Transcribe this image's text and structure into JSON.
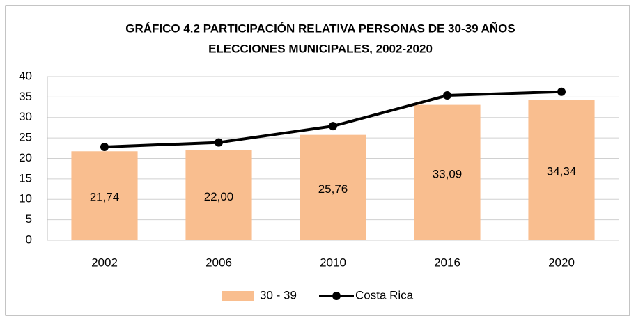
{
  "chart_data": {
    "type": "combo",
    "title": [
      "GRÁFICO 4.2 PARTICIPACIÓN RELATIVA PERSONAS DE 30-39 AÑOS",
      "ELECCIONES MUNICIPALES, 2002-2020"
    ],
    "categories": [
      "2002",
      "2006",
      "2010",
      "2016",
      "2020"
    ],
    "series": [
      {
        "name": "30 - 39",
        "type": "bar",
        "color": "#f9be8f",
        "values": [
          21.74,
          22.0,
          25.76,
          33.09,
          34.34
        ],
        "value_labels": [
          "21,74",
          "22,00",
          "25,76",
          "33,09",
          "34,34"
        ]
      },
      {
        "name": "Costa Rica",
        "type": "line",
        "color": "#000000",
        "values": [
          22.8,
          23.9,
          27.9,
          35.4,
          36.3
        ]
      }
    ],
    "ylim": [
      0,
      40
    ],
    "yticks": [
      0,
      5,
      10,
      15,
      20,
      25,
      30,
      35,
      40
    ],
    "grid": true,
    "legend": "bottom"
  }
}
